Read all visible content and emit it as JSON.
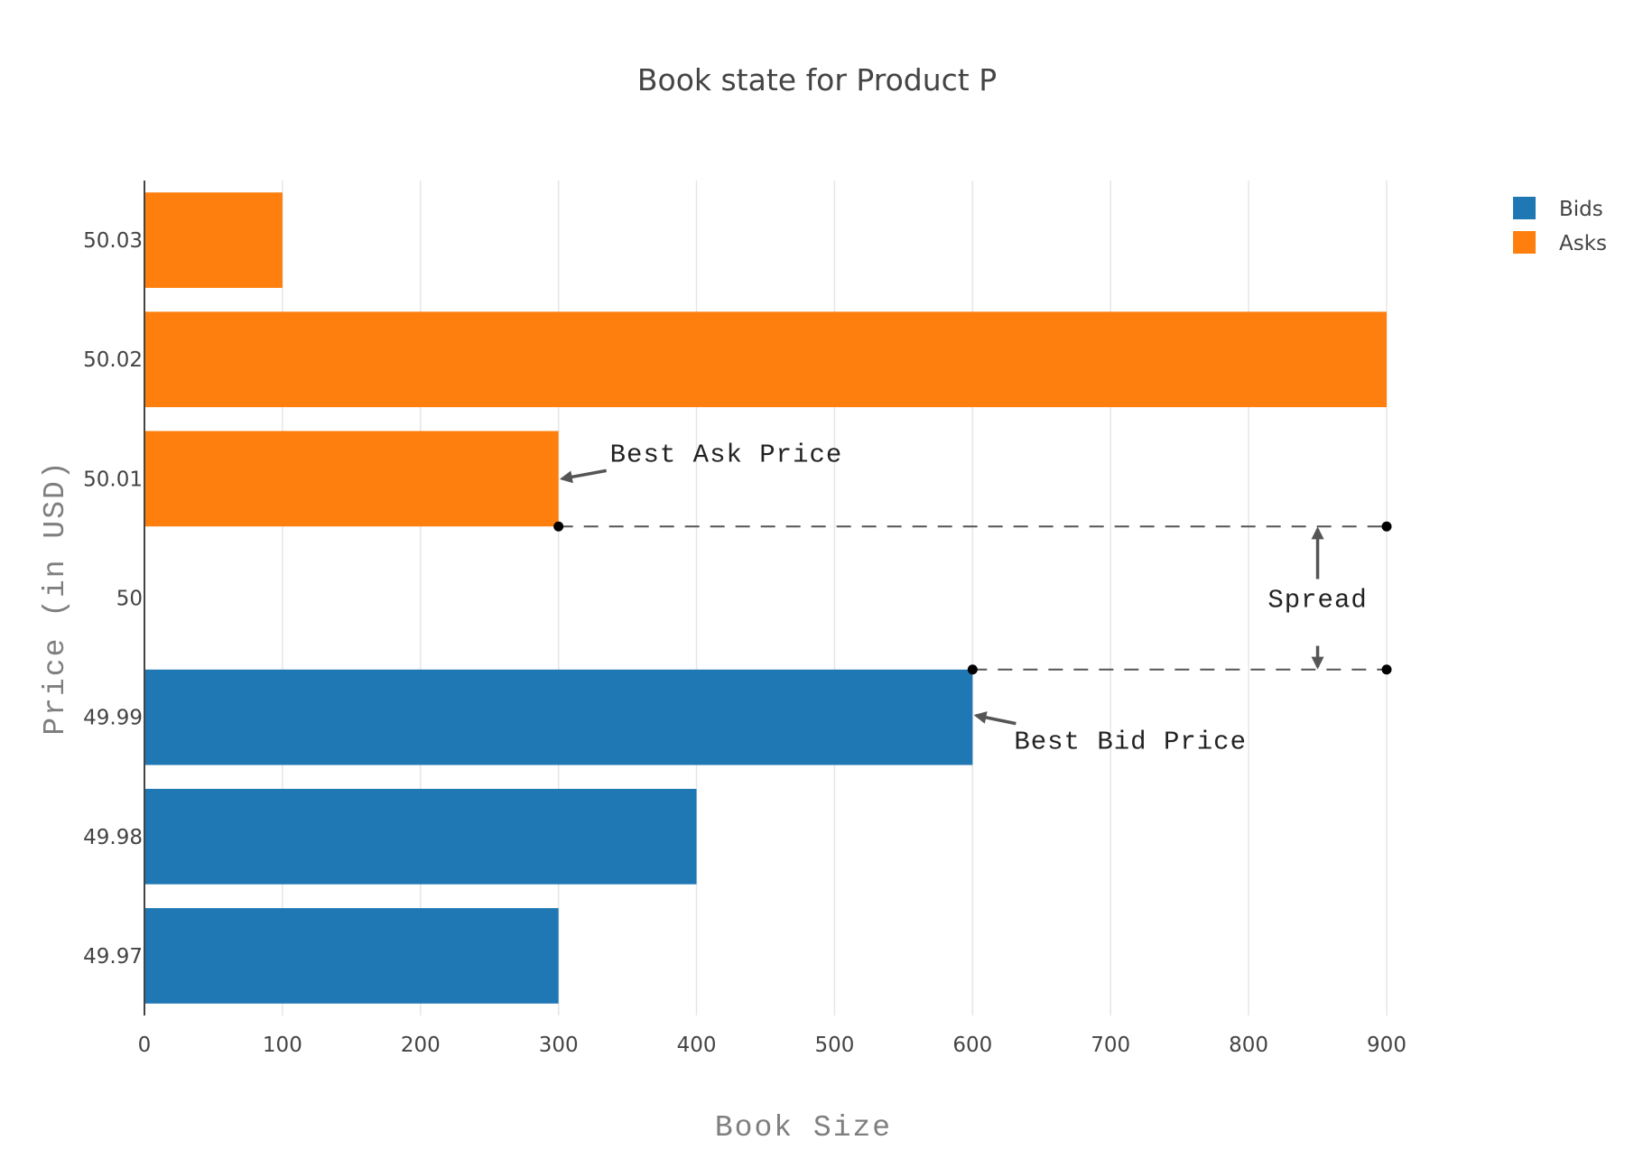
{
  "chart_data": {
    "type": "bar",
    "orientation": "horizontal",
    "title": "Book state for Product P",
    "xlabel": "Book Size",
    "ylabel": "Price (in USD)",
    "categories": [
      "49.97",
      "49.98",
      "49.99",
      "50",
      "50.01",
      "50.02",
      "50.03"
    ],
    "x_ticks": [
      "0",
      "100",
      "200",
      "300",
      "400",
      "500",
      "600",
      "700",
      "800",
      "900"
    ],
    "xlim": [
      0,
      900
    ],
    "series": [
      {
        "name": "Bids",
        "color": "#1f77b4",
        "values": [
          300,
          400,
          600,
          null,
          null,
          null,
          null
        ]
      },
      {
        "name": "Asks",
        "color": "#ff7f0e",
        "values": [
          null,
          null,
          null,
          null,
          300,
          900,
          100
        ]
      }
    ],
    "annotations": {
      "best_ask": {
        "text": "Best Ask Price",
        "x": 300,
        "y": "50.01"
      },
      "best_bid": {
        "text": "Best Bid Price",
        "x": 600,
        "y": "49.99"
      },
      "spread": {
        "text": "Spread",
        "x": 850
      }
    },
    "grid": true,
    "legend_position": "top-right"
  }
}
